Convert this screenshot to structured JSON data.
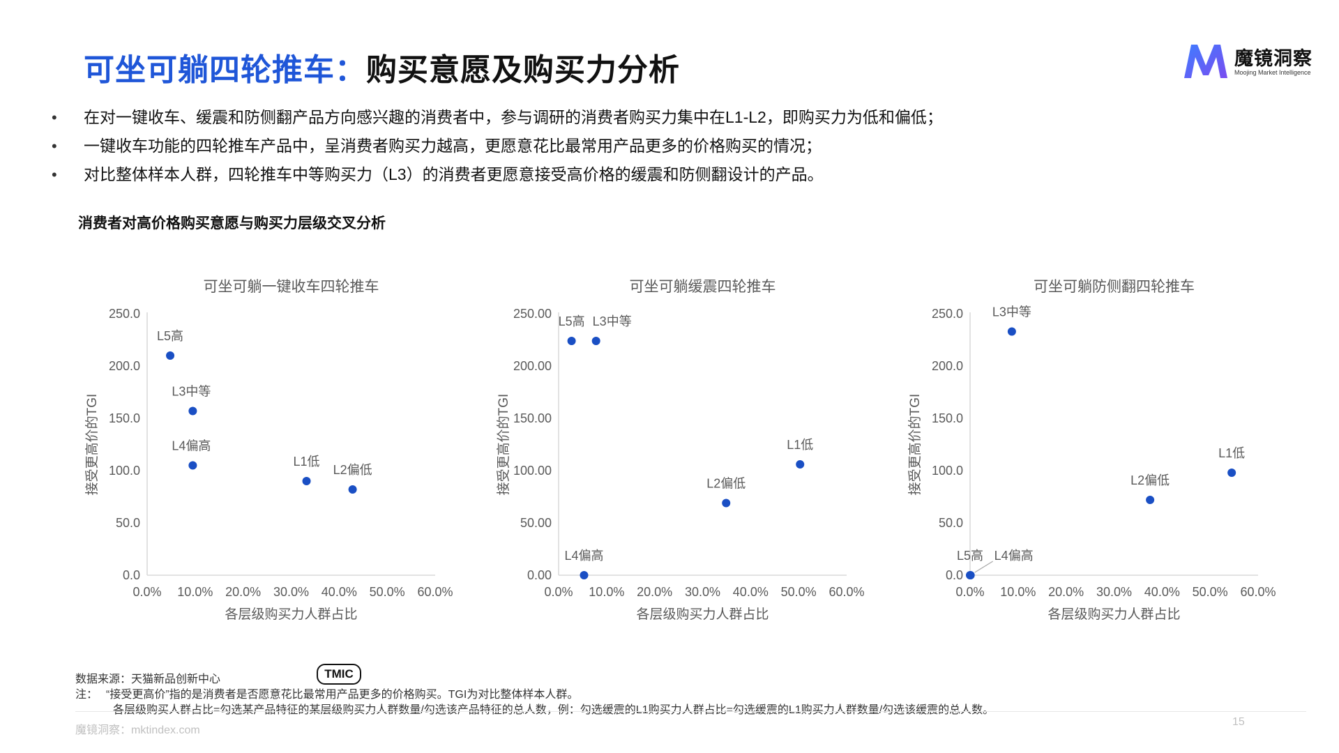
{
  "header": {
    "title_part1": "可坐可躺四轮推车：",
    "title_part2": "购买意愿及购买力分析"
  },
  "logo": {
    "name_cn": "魔镜洞察",
    "name_en": "Moojing Market Intelligence"
  },
  "bullets": [
    "在对一键收车、缓震和防侧翻产品方向感兴趣的消费者中，参与调研的消费者购买力集中在L1-L2，即购买力为低和偏低；",
    "一键收车功能的四轮推车产品中，呈消费者购买力越高，更愿意花比最常用产品更多的价格购买的情况；",
    "对比整体样本人群，四轮推车中等购买力（L3）的消费者更愿意接受高价格的缓震和防侧翻设计的产品。"
  ],
  "section_title": "消费者对高价格购买意愿与购买力层级交叉分析",
  "colors": {
    "accent": "#1f56d8",
    "point": "#1a4fc4",
    "axis": "#d9d9d9",
    "label": "#595959"
  },
  "chart_data": [
    {
      "type": "scatter",
      "title": "可坐可躺一键收车四轮推车",
      "xlabel": "各层级购买力人群占比",
      "ylabel": "接受更高价的TGI",
      "xlim": [
        0,
        60
      ],
      "ylim": [
        0,
        250
      ],
      "x_ticks": [
        "0.0%",
        "10.0%",
        "20.0%",
        "30.0%",
        "40.0%",
        "50.0%",
        "60.0%"
      ],
      "y_ticks": [
        "0.0",
        "50.0",
        "100.0",
        "150.0",
        "200.0",
        "250.0"
      ],
      "points": [
        {
          "label": "L5高",
          "x": 4.8,
          "y": 210
        },
        {
          "label": "L3中等",
          "x": 9.5,
          "y": 157
        },
        {
          "label": "L4偏高",
          "x": 9.5,
          "y": 105
        },
        {
          "label": "L1低",
          "x": 33.2,
          "y": 90
        },
        {
          "label": "L2偏低",
          "x": 42.8,
          "y": 82
        }
      ]
    },
    {
      "type": "scatter",
      "title": "可坐可躺缓震四轮推车",
      "xlabel": "各层级购买力人群占比",
      "ylabel": "接受更高价的TGI",
      "xlim": [
        0,
        60
      ],
      "ylim": [
        0,
        250
      ],
      "x_ticks": [
        "0.0%",
        "10.0%",
        "20.0%",
        "30.0%",
        "40.0%",
        "50.0%",
        "60.0%"
      ],
      "y_ticks": [
        "0.00",
        "50.00",
        "100.00",
        "150.00",
        "200.00",
        "250.00"
      ],
      "points": [
        {
          "label": "L5高",
          "x": 2.7,
          "y": 224
        },
        {
          "label": "L3中等",
          "x": 7.8,
          "y": 224
        },
        {
          "label": "L4偏高",
          "x": 5.3,
          "y": 0
        },
        {
          "label": "L1低",
          "x": 50.3,
          "y": 106
        },
        {
          "label": "L2偏低",
          "x": 34.9,
          "y": 69
        }
      ]
    },
    {
      "type": "scatter",
      "title": "可坐可躺防侧翻四轮推车",
      "xlabel": "各层级购买力人群占比",
      "ylabel": "接受更高价的TGI",
      "xlim": [
        0,
        60
      ],
      "ylim": [
        0,
        250
      ],
      "x_ticks": [
        "0.0%",
        "10.0%",
        "20.0%",
        "30.0%",
        "40.0%",
        "50.0%",
        "60.0%"
      ],
      "y_ticks": [
        "0.0",
        "50.0",
        "100.0",
        "150.0",
        "200.0",
        "250.0"
      ],
      "points": [
        {
          "label": "L3中等",
          "x": 8.7,
          "y": 233
        },
        {
          "label": "L5高",
          "x": 0,
          "y": 0
        },
        {
          "label": "L4偏高",
          "x": 0.1,
          "y": 0
        },
        {
          "label": "L1低",
          "x": 54.5,
          "y": 98
        },
        {
          "label": "L2偏低",
          "x": 37.5,
          "y": 72
        }
      ]
    }
  ],
  "footer": {
    "source_label": "数据来源：天猫新品创新中心",
    "tmic_badge": "TMIC",
    "note_prefix": "注：",
    "note_1": "“接受更高价”指的是消费者是否愿意花比最常用产品更多的价格购买。TGI为对比整体样本人群。",
    "note_2": "各层级购买人群占比=勾选某产品特征的某层级购买力人群数量/勾选该产品特征的总人数，例：勾选缓震的L1购买力人群占比=勾选缓震的L1购买力人群数量/勾选该缓震的总人数。",
    "brand": "魔镜洞察：mktindex.com",
    "page_number": "15"
  }
}
